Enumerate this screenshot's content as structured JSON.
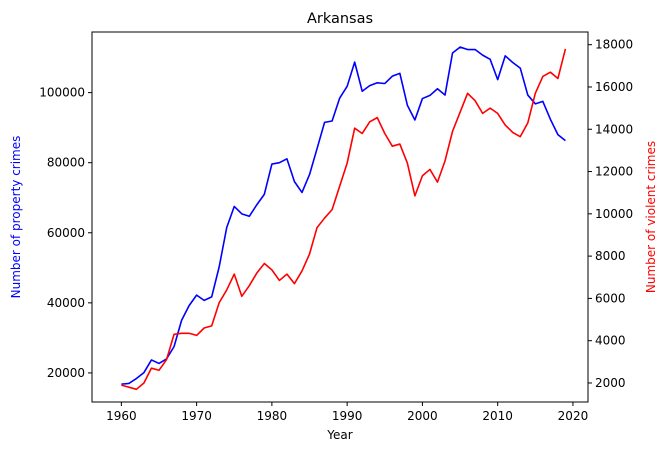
{
  "colors": {
    "property": "#0000ff",
    "violent": "#ff0000",
    "axis": "#000000",
    "background": "#ffffff"
  },
  "chart_data": {
    "type": "line",
    "title": "Arkansas",
    "xlabel": "Year",
    "ylabel_left": "Number of property crimes",
    "ylabel_right": "Number of violent crimes",
    "xlim": [
      1956.1,
      2022.0
    ],
    "ylim_left": [
      11700,
      117300
    ],
    "ylim_right": [
      1100,
      18600
    ],
    "x_ticks": [
      1960,
      1970,
      1980,
      1990,
      2000,
      2010,
      2020
    ],
    "y_left_ticks": [
      20000,
      40000,
      60000,
      80000,
      100000
    ],
    "y_right_ticks": [
      2000,
      4000,
      6000,
      8000,
      10000,
      12000,
      14000,
      16000,
      18000
    ],
    "x": [
      1960,
      1961,
      1962,
      1963,
      1964,
      1965,
      1966,
      1967,
      1968,
      1969,
      1970,
      1971,
      1972,
      1973,
      1974,
      1975,
      1976,
      1977,
      1978,
      1979,
      1980,
      1981,
      1982,
      1983,
      1984,
      1985,
      1986,
      1987,
      1988,
      1989,
      1990,
      1991,
      1992,
      1993,
      1994,
      1995,
      1996,
      1997,
      1998,
      1999,
      2000,
      2001,
      2002,
      2003,
      2004,
      2005,
      2006,
      2007,
      2008,
      2009,
      2010,
      2011,
      2012,
      2013,
      2014,
      2015,
      2016,
      2017,
      2018,
      2019
    ],
    "series": [
      {
        "name": "Number of property crimes",
        "axis": "left",
        "values": [
          16800,
          17000,
          18400,
          20100,
          23700,
          22700,
          24000,
          27500,
          35000,
          39200,
          42200,
          40700,
          41700,
          50300,
          61500,
          67500,
          65400,
          64700,
          68000,
          71000,
          79600,
          80000,
          81100,
          74600,
          71500,
          76600,
          84000,
          91500,
          91900,
          98400,
          101800,
          108700,
          100400,
          102000,
          102800,
          102600,
          104700,
          105500,
          96400,
          92200,
          98300,
          99200,
          101100,
          99300,
          111300,
          113000,
          112300,
          112300,
          110700,
          109500,
          103700,
          110500,
          108600,
          107000,
          99300,
          96800,
          97500,
          92400,
          88000,
          86300
        ]
      },
      {
        "name": "Number of violent crimes",
        "axis": "right",
        "values": [
          1900,
          1800,
          1700,
          2000,
          2700,
          2600,
          3100,
          4300,
          4350,
          4350,
          4250,
          4600,
          4700,
          5800,
          6400,
          7150,
          6100,
          6600,
          7200,
          7650,
          7350,
          6850,
          7150,
          6700,
          7300,
          8100,
          9350,
          9800,
          10200,
          11300,
          12400,
          14050,
          13800,
          14350,
          14550,
          13800,
          13200,
          13300,
          12400,
          10850,
          11800,
          12100,
          11500,
          12500,
          13900,
          14800,
          15700,
          15350,
          14750,
          15000,
          14750,
          14200,
          13850,
          13650,
          14300,
          15700,
          16500,
          16700,
          16400,
          17800
        ]
      }
    ]
  }
}
